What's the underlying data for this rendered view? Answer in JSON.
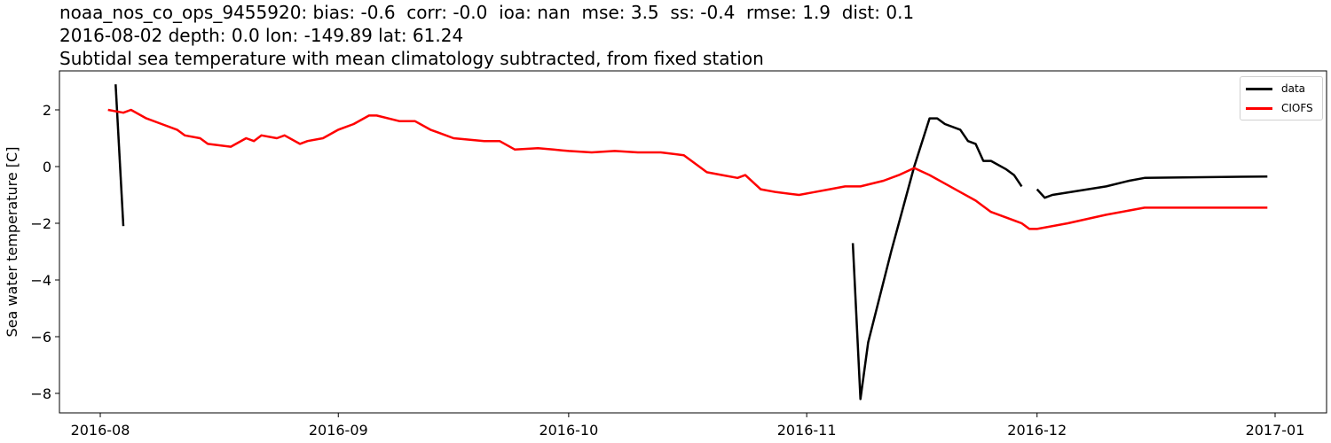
{
  "title": {
    "line1": "noaa_nos_co_ops_9455920: bias: -0.6  corr: -0.0  ioa: nan  mse: 3.5  ss: -0.4  rmse: 1.9  dist: 0.1",
    "line2": "2016-08-02 depth: 0.0 lon: -149.89 lat: 61.24",
    "line3": "Subtidal sea temperature with mean climatology subtracted, from fixed station"
  },
  "legend": {
    "items": [
      {
        "label": "data",
        "color": "#000000"
      },
      {
        "label": "CIOFS",
        "color": "#ff0000"
      }
    ]
  },
  "chart_data": {
    "type": "line",
    "title": "noaa_nos_co_ops_9455920: bias: -0.6  corr: -0.0  ioa: nan  mse: 3.5  ss: -0.4  rmse: 1.9  dist: 0.1 / 2016-08-02 depth: 0.0 lon: -149.89 lat: 61.24 / Subtidal sea temperature with mean climatology subtracted, from fixed station",
    "xlabel": "",
    "ylabel": "Sea water temperature [C]",
    "x_ticks": [
      "2016-08",
      "2016-09",
      "2016-10",
      "2016-11",
      "2016-12",
      "2017-01"
    ],
    "y_ticks": [
      -8,
      -6,
      -4,
      -2,
      0,
      2
    ],
    "ylim": [
      -8.8,
      3.4
    ],
    "xlim": [
      "2016-07-31",
      "2017-01-03"
    ],
    "grid": false,
    "legend_position": "upper right",
    "series": [
      {
        "name": "data",
        "color": "#000000",
        "segments": [
          [
            [
              "2016-08-03",
              2.9
            ],
            [
              "2016-08-04",
              -2.1
            ]
          ],
          [
            [
              "2016-11-07",
              -2.7
            ],
            [
              "2016-11-08",
              -8.2
            ],
            [
              "2016-11-09",
              -6.2
            ],
            [
              "2016-11-12",
              -3.0
            ],
            [
              "2016-11-15",
              0.0
            ],
            [
              "2016-11-17",
              1.7
            ],
            [
              "2016-11-18",
              1.7
            ],
            [
              "2016-11-19",
              1.5
            ],
            [
              "2016-11-21",
              1.3
            ],
            [
              "2016-11-22",
              0.9
            ],
            [
              "2016-11-23",
              0.8
            ],
            [
              "2016-11-24",
              0.2
            ],
            [
              "2016-11-25",
              0.2
            ],
            [
              "2016-11-27",
              -0.1
            ],
            [
              "2016-11-28",
              -0.3
            ],
            [
              "2016-11-29",
              -0.7
            ]
          ],
          [
            [
              "2016-12-01",
              -0.8
            ],
            [
              "2016-12-02",
              -1.1
            ],
            [
              "2016-12-03",
              -1.0
            ],
            [
              "2016-12-10",
              -0.7
            ],
            [
              "2016-12-13",
              -0.5
            ],
            [
              "2016-12-15",
              -0.4
            ],
            [
              "2016-12-31",
              -0.35
            ]
          ]
        ]
      },
      {
        "name": "CIOFS",
        "color": "#ff0000",
        "points": [
          [
            "2016-08-02",
            2.0
          ],
          [
            "2016-08-04",
            1.9
          ],
          [
            "2016-08-05",
            2.0
          ],
          [
            "2016-08-07",
            1.7
          ],
          [
            "2016-08-09",
            1.5
          ],
          [
            "2016-08-11",
            1.3
          ],
          [
            "2016-08-12",
            1.1
          ],
          [
            "2016-08-14",
            1.0
          ],
          [
            "2016-08-15",
            0.8
          ],
          [
            "2016-08-18",
            0.7
          ],
          [
            "2016-08-20",
            1.0
          ],
          [
            "2016-08-21",
            0.9
          ],
          [
            "2016-08-22",
            1.1
          ],
          [
            "2016-08-24",
            1.0
          ],
          [
            "2016-08-25",
            1.1
          ],
          [
            "2016-08-27",
            0.8
          ],
          [
            "2016-08-28",
            0.9
          ],
          [
            "2016-08-30",
            1.0
          ],
          [
            "2016-09-01",
            1.3
          ],
          [
            "2016-09-03",
            1.5
          ],
          [
            "2016-09-05",
            1.8
          ],
          [
            "2016-09-06",
            1.8
          ],
          [
            "2016-09-09",
            1.6
          ],
          [
            "2016-09-11",
            1.6
          ],
          [
            "2016-09-13",
            1.3
          ],
          [
            "2016-09-14",
            1.2
          ],
          [
            "2016-09-16",
            1.0
          ],
          [
            "2016-09-20",
            0.9
          ],
          [
            "2016-09-22",
            0.9
          ],
          [
            "2016-09-24",
            0.6
          ],
          [
            "2016-09-27",
            0.65
          ],
          [
            "2016-09-29",
            0.6
          ],
          [
            "2016-10-01",
            0.55
          ],
          [
            "2016-10-04",
            0.5
          ],
          [
            "2016-10-07",
            0.55
          ],
          [
            "2016-10-10",
            0.5
          ],
          [
            "2016-10-13",
            0.5
          ],
          [
            "2016-10-16",
            0.4
          ],
          [
            "2016-10-18",
            0.0
          ],
          [
            "2016-10-19",
            -0.2
          ],
          [
            "2016-10-21",
            -0.3
          ],
          [
            "2016-10-23",
            -0.4
          ],
          [
            "2016-10-24",
            -0.3
          ],
          [
            "2016-10-26",
            -0.8
          ],
          [
            "2016-10-28",
            -0.9
          ],
          [
            "2016-10-31",
            -1.0
          ],
          [
            "2016-11-02",
            -0.9
          ],
          [
            "2016-11-04",
            -0.8
          ],
          [
            "2016-11-06",
            -0.7
          ],
          [
            "2016-11-08",
            -0.7
          ],
          [
            "2016-11-11",
            -0.5
          ],
          [
            "2016-11-13",
            -0.3
          ],
          [
            "2016-11-15",
            -0.05
          ],
          [
            "2016-11-17",
            -0.3
          ],
          [
            "2016-11-19",
            -0.6
          ],
          [
            "2016-11-21",
            -0.9
          ],
          [
            "2016-11-23",
            -1.2
          ],
          [
            "2016-11-25",
            -1.6
          ],
          [
            "2016-11-27",
            -1.8
          ],
          [
            "2016-11-29",
            -2.0
          ],
          [
            "2016-11-30",
            -2.2
          ],
          [
            "2016-12-01",
            -2.2
          ],
          [
            "2016-12-05",
            -2.0
          ],
          [
            "2016-12-10",
            -1.7
          ],
          [
            "2016-12-15",
            -1.45
          ],
          [
            "2016-12-31",
            -1.45
          ]
        ]
      }
    ]
  }
}
